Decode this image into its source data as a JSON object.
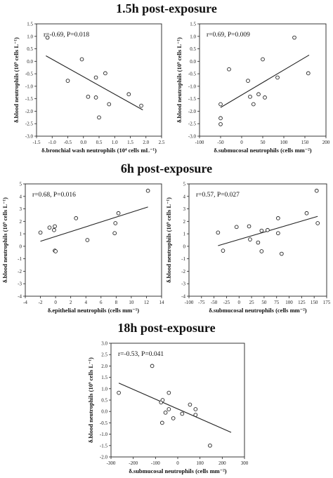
{
  "sections": [
    {
      "title": "1.5h post-exposure"
    },
    {
      "title": "6h post-exposure"
    },
    {
      "title": "18h post-exposure"
    }
  ],
  "chart_data": [
    {
      "type": "scatter",
      "stat": "r=-0.69, P=0.018",
      "xlabel": "δ.bronchial wash neutrophils (10⁴ cells mL⁻¹)",
      "ylabel": "δ.blood neutrophils (10⁹ cells L⁻¹)",
      "xlim": [
        -1.5,
        2.5
      ],
      "ylim": [
        -3.0,
        1.5
      ],
      "xticks": [
        -1.5,
        -1.0,
        -0.5,
        0.0,
        0.5,
        1.0,
        1.5,
        2.0,
        2.5
      ],
      "yticks": [
        -3.0,
        -2.5,
        -2.0,
        -1.5,
        -1.0,
        -0.5,
        0.0,
        0.5,
        1.0,
        1.5
      ],
      "xticklabels": [
        "-1.5",
        "-1.0",
        "-0.5",
        "0.0",
        "0.5",
        "1.0",
        "1.5",
        "2.0",
        "2.5"
      ],
      "yticklabels": [
        "-3.0",
        "-2.5",
        "-2.0",
        "-1.5",
        "-1.0",
        "-0.5",
        "0.0",
        "0.5",
        "1.0",
        "1.5"
      ],
      "points": [
        [
          -1.15,
          0.95
        ],
        [
          -0.5,
          -0.78
        ],
        [
          -0.05,
          0.08
        ],
        [
          0.15,
          -1.42
        ],
        [
          0.4,
          -1.45
        ],
        [
          0.4,
          -0.65
        ],
        [
          0.5,
          -2.25
        ],
        [
          0.7,
          -0.48
        ],
        [
          0.82,
          -1.72
        ],
        [
          1.45,
          -1.32
        ],
        [
          1.85,
          -1.78
        ]
      ],
      "fit": [
        [
          -1.2,
          0.22
        ],
        [
          1.9,
          -1.95
        ]
      ]
    },
    {
      "type": "scatter",
      "stat": "r=0.69, P=0.009",
      "xlabel": "δ.submucosal neutrophils (cells mm⁻²)",
      "ylabel": "δ.blood neutrophils (10⁹ cells L⁻¹)",
      "xlim": [
        -100,
        200
      ],
      "ylim": [
        -3.0,
        1.5
      ],
      "xticks": [
        -100,
        -50,
        0,
        50,
        100,
        150,
        200
      ],
      "yticks": [
        -3.0,
        -2.5,
        -2.0,
        -1.5,
        -1.0,
        -0.5,
        0.0,
        0.5,
        1.0,
        1.5
      ],
      "xticklabels": [
        "-100",
        "-50",
        "0",
        "50",
        "100",
        "150",
        "200"
      ],
      "yticklabels": [
        "-3.0",
        "-2.5",
        "-2.0",
        "-1.5",
        "-1.0",
        "-0.5",
        "0.0",
        "0.5",
        "1.0",
        "1.5"
      ],
      "points": [
        [
          -50,
          -1.72
        ],
        [
          -50,
          -2.28
        ],
        [
          -50,
          -2.52
        ],
        [
          -30,
          -0.32
        ],
        [
          15,
          -0.78
        ],
        [
          20,
          -1.42
        ],
        [
          28,
          -1.72
        ],
        [
          40,
          -1.32
        ],
        [
          50,
          0.08
        ],
        [
          55,
          -1.45
        ],
        [
          85,
          -0.65
        ],
        [
          125,
          0.95
        ],
        [
          158,
          -0.48
        ]
      ],
      "fit": [
        [
          -50,
          -1.85
        ],
        [
          160,
          0.25
        ]
      ]
    },
    {
      "type": "scatter",
      "stat": "r=0.68, P=0.016",
      "xlabel": "δ.epithelial neutrophils (cells mm⁻¹)",
      "ylabel": "δ.blood neutrophils (10⁹ cells L⁻¹)",
      "xlim": [
        -4,
        14
      ],
      "ylim": [
        -4,
        5
      ],
      "xticks": [
        -4,
        -2,
        0,
        2,
        4,
        6,
        8,
        10,
        12,
        14
      ],
      "yticks": [
        -4,
        -3,
        -2,
        -1,
        0,
        1,
        2,
        3,
        4,
        5
      ],
      "xticklabels": [
        "-4",
        "-2",
        "0",
        "2",
        "4",
        "6",
        "8",
        "10",
        "12",
        "14"
      ],
      "yticklabels": [
        "-4",
        "-3",
        "-2",
        "-1",
        "0",
        "1",
        "2",
        "3",
        "4",
        "5"
      ],
      "points": [
        [
          -2,
          1.1
        ],
        [
          -0.8,
          1.5
        ],
        [
          -0.2,
          1.3
        ],
        [
          -0.1,
          1.6
        ],
        [
          -0.1,
          -0.35
        ],
        [
          0.0,
          -0.4
        ],
        [
          2.7,
          2.25
        ],
        [
          4.2,
          0.5
        ],
        [
          7.8,
          1.05
        ],
        [
          7.9,
          1.85
        ],
        [
          8.3,
          2.65
        ],
        [
          12.2,
          4.45
        ]
      ],
      "fit": [
        [
          -2,
          0.4
        ],
        [
          12.2,
          3.15
        ]
      ]
    },
    {
      "type": "scatter",
      "stat": "r=0.57, P=0.027",
      "xlabel": "δ.submucosal neutrophils (cells mm⁻²)",
      "ylabel": "δ.blood neutrophils (10⁹ cells L⁻¹)",
      "xlim": [
        -100,
        175
      ],
      "ylim": [
        -4,
        5
      ],
      "xticks": [
        -100,
        -75,
        -50,
        -25,
        0,
        25,
        50,
        75,
        100,
        125,
        150,
        175
      ],
      "yticks": [
        -4,
        -3,
        -2,
        -1,
        0,
        1,
        2,
        3,
        4,
        5
      ],
      "xticklabels": [
        "-100",
        "-75",
        "-50",
        "-25",
        "0",
        "25",
        "50",
        "75",
        "100",
        "125",
        "150",
        "175"
      ],
      "yticklabels": [
        "-4",
        "-3",
        "-2",
        "-1",
        "0",
        "1",
        "2",
        "3",
        "4",
        "5"
      ],
      "points": [
        [
          -42,
          1.1
        ],
        [
          -32,
          -0.35
        ],
        [
          -5,
          1.55
        ],
        [
          20,
          1.6
        ],
        [
          22,
          0.55
        ],
        [
          38,
          0.3
        ],
        [
          45,
          -0.4
        ],
        [
          45,
          1.25
        ],
        [
          57,
          1.3
        ],
        [
          78,
          2.25
        ],
        [
          78,
          1.05
        ],
        [
          85,
          -0.6
        ],
        [
          135,
          2.65
        ],
        [
          155,
          4.45
        ],
        [
          157,
          1.85
        ]
      ],
      "fit": [
        [
          -42,
          0.05
        ],
        [
          157,
          2.4
        ]
      ]
    },
    {
      "type": "scatter",
      "stat": "r=-0.53, P=0.041",
      "xlabel": "δ.submucosal neutrophils (cells mm⁻²)",
      "ylabel": "δ.blood neutrophils (10⁹ cells L⁻¹)",
      "xlim": [
        -300,
        300
      ],
      "ylim": [
        -2.0,
        3.0
      ],
      "xticks": [
        -300,
        -200,
        -100,
        0,
        100,
        200,
        300
      ],
      "yticks": [
        -2.0,
        -1.5,
        -1.0,
        -0.5,
        0.0,
        0.5,
        1.0,
        1.5,
        2.0,
        2.5,
        3.0
      ],
      "xticklabels": [
        "-300",
        "-200",
        "-100",
        "0",
        "100",
        "200",
        "300"
      ],
      "yticklabels": [
        "-2.0",
        "-1.5",
        "-1.0",
        "-0.5",
        "0.0",
        "0.5",
        "1.0",
        "1.5",
        "2.0",
        "2.5",
        "3.0"
      ],
      "points": [
        [
          -265,
          0.82
        ],
        [
          -115,
          2.0
        ],
        [
          -75,
          0.4
        ],
        [
          -70,
          -0.5
        ],
        [
          -68,
          0.5
        ],
        [
          -55,
          -0.05
        ],
        [
          -40,
          0.82
        ],
        [
          -40,
          0.1
        ],
        [
          -20,
          -0.3
        ],
        [
          20,
          -0.1
        ],
        [
          55,
          0.3
        ],
        [
          80,
          0.1
        ],
        [
          80,
          -0.15
        ],
        [
          145,
          -1.5
        ]
      ],
      "fit": [
        [
          -265,
          1.25
        ],
        [
          240,
          -0.92
        ]
      ]
    }
  ]
}
